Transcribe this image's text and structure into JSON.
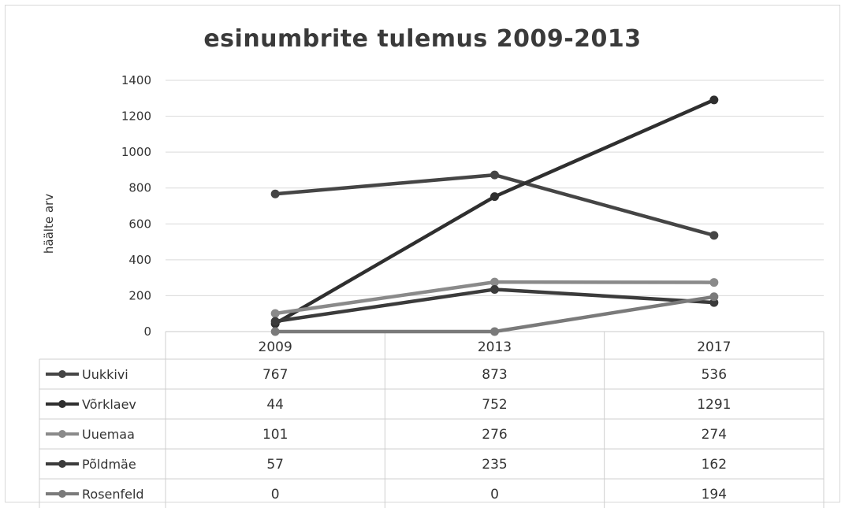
{
  "chart_data": {
    "type": "line",
    "title": "esinumbrite tulemus 2009-2013",
    "ylabel": "häälte arv",
    "xlabel": "",
    "categories": [
      "2009",
      "2013",
      "2017"
    ],
    "ylim": [
      0,
      1400
    ],
    "yticks": [
      0,
      200,
      400,
      600,
      800,
      1000,
      1200,
      1400
    ],
    "grid": true,
    "data_table": true,
    "series": [
      {
        "name": "Uukkivi",
        "values": [
          767,
          873,
          536
        ],
        "color": "#454545"
      },
      {
        "name": "Võrklaev",
        "values": [
          44,
          752,
          1291
        ],
        "color": "#2f2f2f"
      },
      {
        "name": "Uuemaa",
        "values": [
          101,
          276,
          274
        ],
        "color": "#8a8a8a"
      },
      {
        "name": "Põldmäe",
        "values": [
          57,
          235,
          162
        ],
        "color": "#3b3b3b"
      },
      {
        "name": "Rosenfeld",
        "values": [
          0,
          0,
          194
        ],
        "color": "#7a7a7a"
      }
    ]
  }
}
